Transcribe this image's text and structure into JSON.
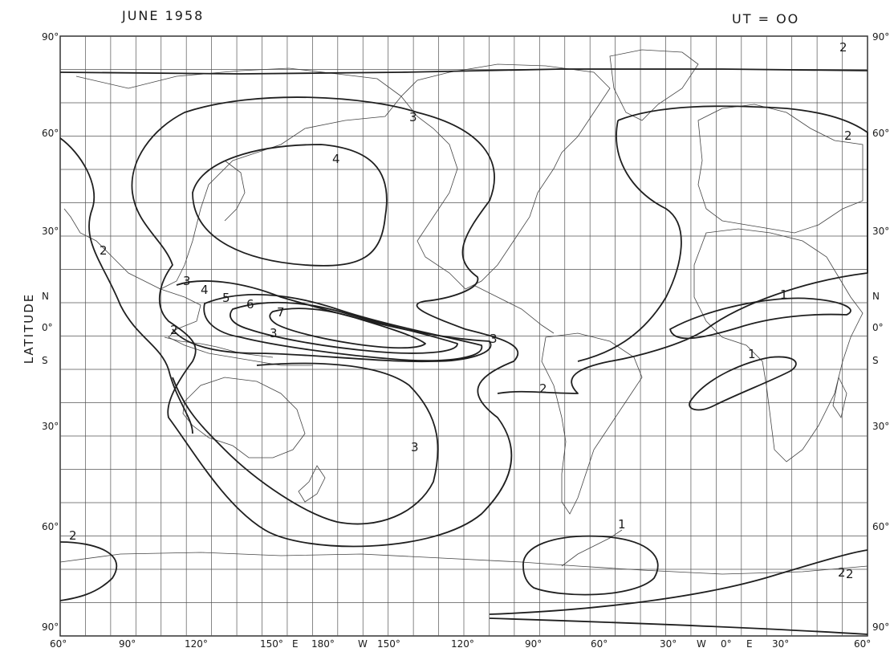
{
  "header": {
    "title": "JUNE 1958",
    "time_label": "UT = OO"
  },
  "axis": {
    "y_title": "LATITUDE",
    "lat_ticks": [
      "90°",
      "60°",
      "30°",
      "N",
      "0°",
      "S",
      "30°",
      "60°",
      "90°"
    ],
    "lon_ticks": [
      "60°",
      "90°",
      "120°",
      "150°",
      "E",
      "180°",
      "W",
      "150°",
      "120°",
      "90°",
      "60°",
      "30°",
      "W",
      "0°",
      "E",
      "30°",
      "60°"
    ]
  },
  "contours": {
    "labels": [
      "2",
      "2",
      "2",
      "2",
      "2",
      "2",
      "3",
      "3",
      "3",
      "3",
      "4",
      "4",
      "5",
      "6",
      "7",
      "1",
      "1",
      "1",
      "2",
      "2",
      "3"
    ]
  },
  "colors": {
    "ink": "#222222",
    "land": "#444444",
    "grid": "#555555"
  }
}
